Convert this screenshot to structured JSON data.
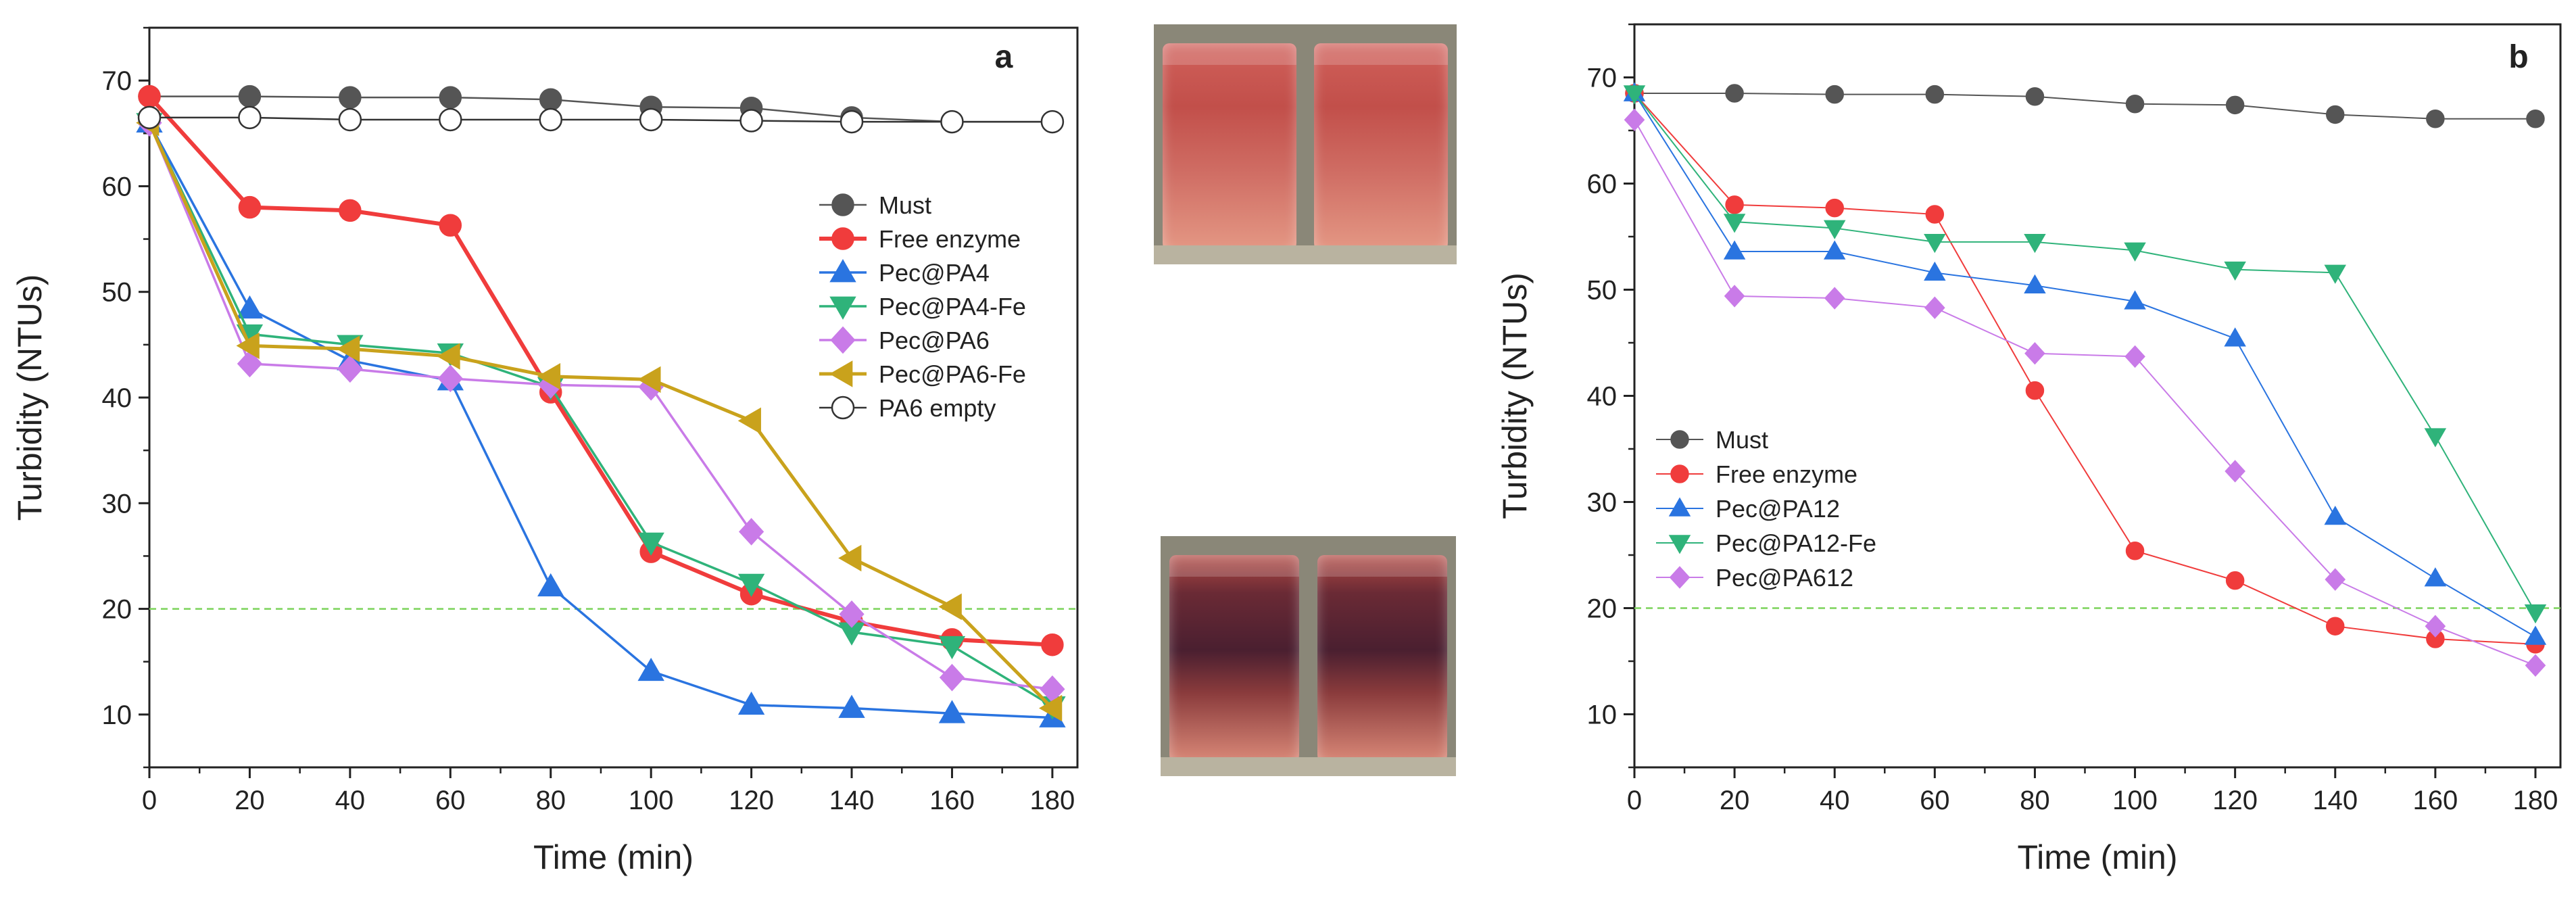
{
  "chart_data": [
    {
      "type": "line",
      "panel_label": "a",
      "xlabel": "Time (min)",
      "ylabel": "Turbidity (NTUs)",
      "xlim": [
        0,
        185
      ],
      "ylim": [
        5,
        75
      ],
      "xticks": [
        0,
        20,
        40,
        60,
        80,
        100,
        120,
        140,
        160,
        180
      ],
      "yticks": [
        10,
        20,
        30,
        40,
        50,
        60,
        70
      ],
      "x_tick_labels": [
        "0",
        "20",
        "40",
        "60",
        "80",
        "100",
        "120",
        "140",
        "160",
        "180"
      ],
      "y_tick_labels": [
        "10",
        "20",
        "30",
        "40",
        "50",
        "60",
        "70"
      ],
      "threshold": 20,
      "threshold_color": "#7bd35a",
      "x": [
        0,
        20,
        40,
        60,
        80,
        100,
        120,
        140,
        160,
        180
      ],
      "series": [
        {
          "name": "Must",
          "color": "#555555",
          "marker": "circle",
          "fill": true,
          "values": [
            68.5,
            68.5,
            68.4,
            68.4,
            68.2,
            67.5,
            67.4,
            66.5,
            66.1,
            66.1
          ]
        },
        {
          "name": "Free enzyme",
          "color": "#f03c3c",
          "marker": "circle",
          "fill": true,
          "values": [
            68.5,
            58.0,
            57.7,
            56.3,
            40.5,
            25.4,
            21.4,
            18.8,
            17.1,
            16.6
          ]
        },
        {
          "name": "Pec@PA4",
          "color": "#2a74e0",
          "marker": "triangle-up",
          "fill": true,
          "values": [
            66.0,
            48.4,
            43.5,
            41.6,
            22.1,
            14.1,
            10.9,
            10.6,
            10.1,
            9.7
          ]
        },
        {
          "name": "Pec@PA4-Fe",
          "color": "#2fb37a",
          "marker": "triangle-down",
          "fill": true,
          "values": [
            66.0,
            46.0,
            45.0,
            44.2,
            41.0,
            26.3,
            22.4,
            17.8,
            16.5,
            10.8
          ]
        },
        {
          "name": "Pec@PA6",
          "color": "#c97be8",
          "marker": "diamond",
          "fill": true,
          "values": [
            66.0,
            43.2,
            42.7,
            41.8,
            41.2,
            41.0,
            27.3,
            19.5,
            13.5,
            12.4
          ]
        },
        {
          "name": "Pec@PA6-Fe",
          "color": "#c9a21c",
          "marker": "triangle-left",
          "fill": true,
          "values": [
            66.0,
            44.9,
            44.6,
            43.9,
            42.0,
            41.7,
            37.8,
            24.8,
            20.2,
            10.6
          ]
        },
        {
          "name": "PA6 empty",
          "color": "#444444",
          "marker": "circle",
          "fill": false,
          "values": [
            66.5,
            66.5,
            66.3,
            66.3,
            66.3,
            66.3,
            66.2,
            66.1,
            66.1,
            66.1
          ]
        }
      ]
    },
    {
      "type": "line",
      "panel_label": "b",
      "xlabel": "Time (min)",
      "ylabel": "Turbidity (NTUs)",
      "xlim": [
        0,
        185
      ],
      "ylim": [
        5,
        75
      ],
      "xticks": [
        0,
        20,
        40,
        60,
        80,
        100,
        120,
        140,
        160,
        180
      ],
      "yticks": [
        10,
        20,
        30,
        40,
        50,
        60,
        70
      ],
      "x_tick_labels": [
        "0",
        "20",
        "40",
        "60",
        "80",
        "100",
        "120",
        "140",
        "160",
        "180"
      ],
      "y_tick_labels": [
        "10",
        "20",
        "30",
        "40",
        "50",
        "60",
        "70"
      ],
      "threshold": 20,
      "threshold_color": "#7bd35a",
      "x": [
        0,
        20,
        40,
        60,
        80,
        100,
        120,
        140,
        160,
        180
      ],
      "series": [
        {
          "name": "Must",
          "color": "#555555",
          "marker": "circle",
          "fill": true,
          "values": [
            68.5,
            68.5,
            68.4,
            68.4,
            68.2,
            67.5,
            67.4,
            66.5,
            66.1,
            66.1
          ]
        },
        {
          "name": "Free enzyme",
          "color": "#f03c3c",
          "marker": "circle",
          "fill": true,
          "values": [
            68.5,
            58.0,
            57.7,
            57.1,
            40.5,
            25.4,
            22.6,
            18.3,
            17.1,
            16.6
          ]
        },
        {
          "name": "Pec@PA12",
          "color": "#2a74e0",
          "marker": "triangle-up",
          "fill": true,
          "values": [
            68.5,
            53.6,
            53.6,
            51.6,
            50.4,
            48.9,
            45.4,
            28.6,
            22.8,
            17.3
          ]
        },
        {
          "name": "Pec@PA12-Fe",
          "color": "#2fb37a",
          "marker": "triangle-down",
          "fill": true,
          "values": [
            68.5,
            56.4,
            55.8,
            54.5,
            54.5,
            53.7,
            51.9,
            51.6,
            36.2,
            19.6
          ]
        },
        {
          "name": "Pec@PA612",
          "color": "#c97be8",
          "marker": "diamond",
          "fill": true,
          "values": [
            66.0,
            49.4,
            49.2,
            48.3,
            44.0,
            43.7,
            32.9,
            22.7,
            18.3,
            14.6
          ]
        }
      ]
    }
  ]
}
